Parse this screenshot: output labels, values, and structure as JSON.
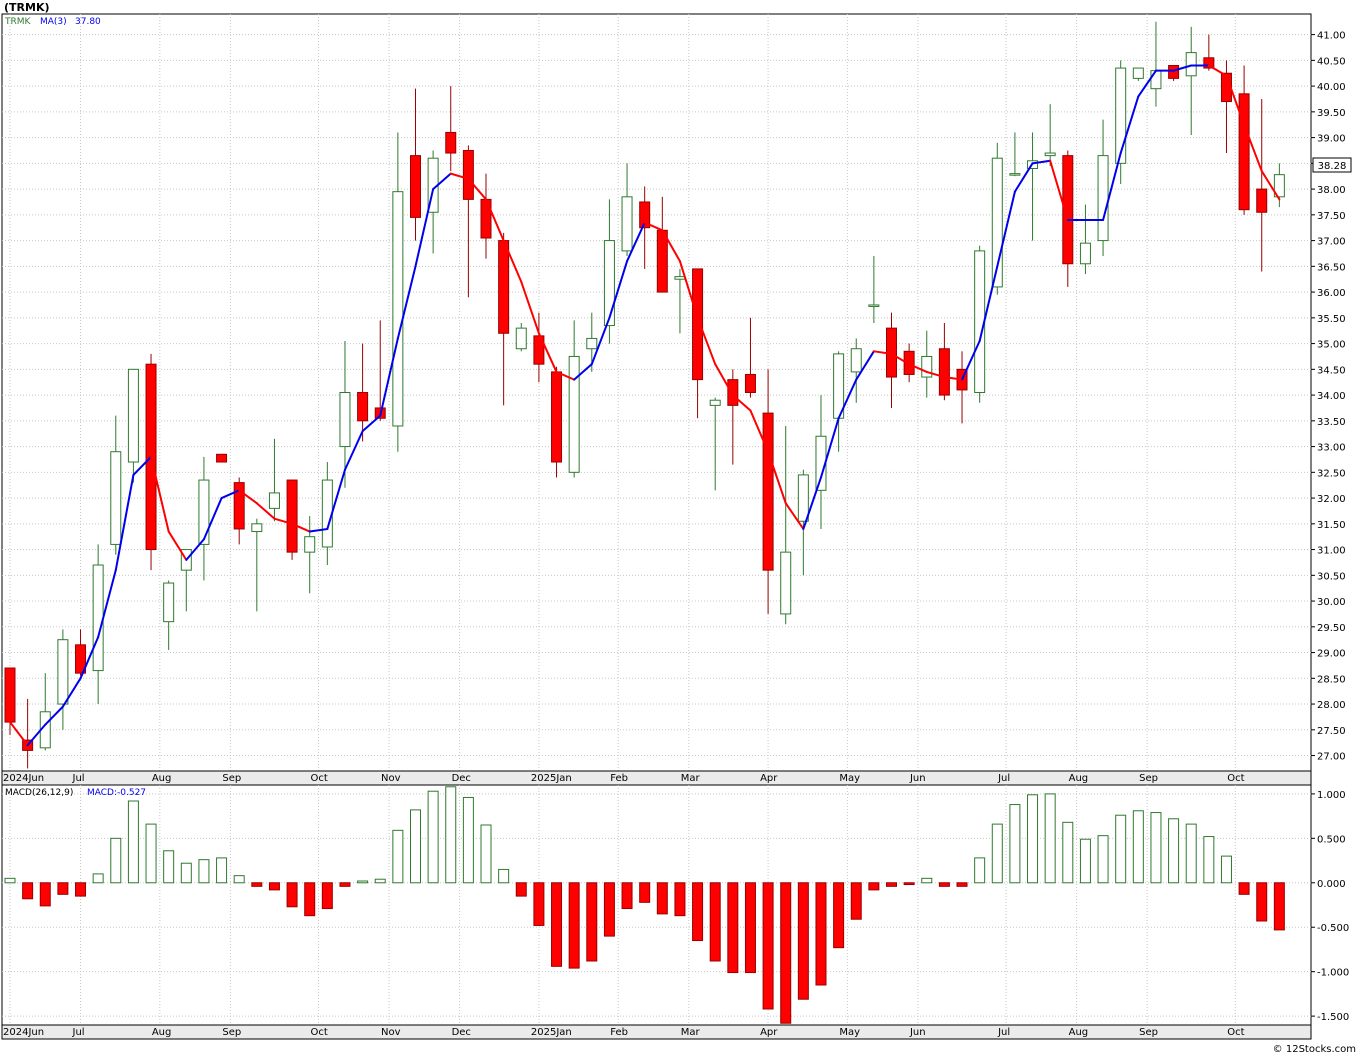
{
  "header": {
    "symbol_title": "(TRMK)",
    "last_price_badge": "38.28"
  },
  "legend": {
    "symbol": "TRMK",
    "ma_label": "MA(3)",
    "ma_value": "37.80",
    "macd_label": "MACD(26,12,9)",
    "macd_value_label": "MACD:-0.527"
  },
  "watermark": "© 12Stocks.com",
  "colors": {
    "up_candle": "#ffffff",
    "up_border": "#2f7a2f",
    "down_candle": "#ff0000",
    "down_border": "#990000",
    "ma_rising": "#0000ee",
    "ma_falling": "#ff0000",
    "grid": "#c8c8c8",
    "panel_bg": "#ffffff",
    "axis_bg": "#ebebeb"
  },
  "chart_data": [
    {
      "type": "candlestick",
      "title": "(TRMK)",
      "series_name": "TRMK",
      "overlay": {
        "name": "MA(3)",
        "last": 37.8
      },
      "ylim": [
        26.7,
        41.4
      ],
      "y_ticks": [
        27.0,
        27.5,
        28.0,
        28.5,
        29.0,
        29.5,
        30.0,
        30.5,
        31.0,
        31.5,
        32.0,
        32.5,
        33.0,
        33.5,
        34.0,
        34.5,
        35.0,
        35.5,
        36.0,
        36.5,
        37.0,
        37.5,
        38.0,
        38.5,
        39.0,
        39.5,
        40.0,
        40.5,
        41.0
      ],
      "y_tick_labels": [
        "27.00",
        "27.50",
        "28.00",
        "28.50",
        "29.00",
        "29.50",
        "30.00",
        "30.50",
        "31.00",
        "31.50",
        "32.00",
        "32.50",
        "33.00",
        "33.50",
        "34.00",
        "34.50",
        "35.00",
        "35.50",
        "36.00",
        "36.50",
        "37.00",
        "37.50",
        "38.00",
        "38.50",
        "39.00",
        "39.50",
        "40.00",
        "40.50",
        "41.00"
      ],
      "x_ticks": [
        {
          "i": 0.5,
          "label": "2024Jun"
        },
        {
          "i": 4.5,
          "label": "Jul"
        },
        {
          "i": 9,
          "label": "Aug"
        },
        {
          "i": 13,
          "label": "Sep"
        },
        {
          "i": 18,
          "label": "Oct"
        },
        {
          "i": 22,
          "label": "Nov"
        },
        {
          "i": 26,
          "label": "Dec"
        },
        {
          "i": 30.5,
          "label": "2025Jan"
        },
        {
          "i": 35,
          "label": "Feb"
        },
        {
          "i": 39,
          "label": "Mar"
        },
        {
          "i": 43.5,
          "label": "Apr"
        },
        {
          "i": 48,
          "label": "May"
        },
        {
          "i": 52,
          "label": "Jun"
        },
        {
          "i": 57,
          "label": "Jul"
        },
        {
          "i": 61,
          "label": "Aug"
        },
        {
          "i": 65,
          "label": "Sep"
        },
        {
          "i": 70,
          "label": "Oct"
        }
      ],
      "candles": [
        {
          "o": 28.7,
          "h": 28.7,
          "l": 27.4,
          "c": 27.65
        },
        {
          "o": 27.3,
          "h": 28.1,
          "l": 26.75,
          "c": 27.1
        },
        {
          "o": 27.15,
          "h": 28.6,
          "l": 27.1,
          "c": 27.85
        },
        {
          "o": 28.0,
          "h": 29.45,
          "l": 27.5,
          "c": 29.25
        },
        {
          "o": 29.15,
          "h": 29.45,
          "l": 28.55,
          "c": 28.6
        },
        {
          "o": 28.65,
          "h": 31.1,
          "l": 28.0,
          "c": 30.7
        },
        {
          "o": 31.1,
          "h": 33.6,
          "l": 30.9,
          "c": 32.9
        },
        {
          "o": 32.7,
          "h": 34.5,
          "l": 32.3,
          "c": 34.5
        },
        {
          "o": 34.6,
          "h": 34.8,
          "l": 30.6,
          "c": 31.0
        },
        {
          "o": 29.6,
          "h": 30.4,
          "l": 29.05,
          "c": 30.35
        },
        {
          "o": 30.6,
          "h": 31.0,
          "l": 29.8,
          "c": 31.0
        },
        {
          "o": 31.1,
          "h": 32.8,
          "l": 30.4,
          "c": 32.35
        },
        {
          "o": 32.85,
          "h": 32.85,
          "l": 32.7,
          "c": 32.7
        },
        {
          "o": 32.3,
          "h": 32.4,
          "l": 31.1,
          "c": 31.4
        },
        {
          "o": 31.35,
          "h": 31.6,
          "l": 29.8,
          "c": 31.5
        },
        {
          "o": 31.8,
          "h": 33.15,
          "l": 31.55,
          "c": 32.1
        },
        {
          "o": 32.35,
          "h": 32.35,
          "l": 30.8,
          "c": 30.95
        },
        {
          "o": 30.95,
          "h": 31.65,
          "l": 30.15,
          "c": 31.25
        },
        {
          "o": 31.05,
          "h": 32.7,
          "l": 30.7,
          "c": 32.35
        },
        {
          "o": 33.0,
          "h": 35.05,
          "l": 32.2,
          "c": 34.05
        },
        {
          "o": 34.05,
          "h": 35.0,
          "l": 33.1,
          "c": 33.5
        },
        {
          "o": 33.75,
          "h": 35.45,
          "l": 33.5,
          "c": 33.55
        },
        {
          "o": 33.4,
          "h": 39.1,
          "l": 32.9,
          "c": 37.95
        },
        {
          "o": 38.65,
          "h": 39.95,
          "l": 37.0,
          "c": 37.45
        },
        {
          "o": 37.55,
          "h": 38.75,
          "l": 36.75,
          "c": 38.6
        },
        {
          "o": 39.1,
          "h": 40.0,
          "l": 38.35,
          "c": 38.7
        },
        {
          "o": 38.75,
          "h": 38.85,
          "l": 35.9,
          "c": 37.8
        },
        {
          "o": 37.8,
          "h": 38.3,
          "l": 36.65,
          "c": 37.05
        },
        {
          "o": 37.0,
          "h": 37.15,
          "l": 33.8,
          "c": 35.2
        },
        {
          "o": 34.9,
          "h": 35.4,
          "l": 34.85,
          "c": 35.3
        },
        {
          "o": 35.15,
          "h": 35.6,
          "l": 34.25,
          "c": 34.6
        },
        {
          "o": 34.45,
          "h": 34.55,
          "l": 32.4,
          "c": 32.7
        },
        {
          "o": 32.5,
          "h": 35.45,
          "l": 32.4,
          "c": 34.75
        },
        {
          "o": 34.9,
          "h": 35.6,
          "l": 34.45,
          "c": 35.1
        },
        {
          "o": 35.35,
          "h": 37.8,
          "l": 35.0,
          "c": 37.0
        },
        {
          "o": 36.8,
          "h": 38.5,
          "l": 36.7,
          "c": 37.85
        },
        {
          "o": 37.75,
          "h": 38.05,
          "l": 36.45,
          "c": 37.25
        },
        {
          "o": 37.2,
          "h": 37.85,
          "l": 36.0,
          "c": 36.0
        },
        {
          "o": 36.25,
          "h": 36.45,
          "l": 35.2,
          "c": 36.3
        },
        {
          "o": 36.45,
          "h": 36.45,
          "l": 33.55,
          "c": 34.3
        },
        {
          "o": 33.8,
          "h": 33.95,
          "l": 32.15,
          "c": 33.9
        },
        {
          "o": 34.3,
          "h": 34.5,
          "l": 32.65,
          "c": 33.8
        },
        {
          "o": 34.4,
          "h": 35.5,
          "l": 33.95,
          "c": 34.05
        },
        {
          "o": 33.65,
          "h": 34.5,
          "l": 29.75,
          "c": 30.6
        },
        {
          "o": 29.75,
          "h": 33.4,
          "l": 29.55,
          "c": 30.95
        },
        {
          "o": 31.55,
          "h": 32.55,
          "l": 30.5,
          "c": 32.45
        },
        {
          "o": 32.15,
          "h": 34.0,
          "l": 31.4,
          "c": 33.2
        },
        {
          "o": 33.55,
          "h": 34.85,
          "l": 32.9,
          "c": 34.8
        },
        {
          "o": 34.45,
          "h": 35.1,
          "l": 33.85,
          "c": 34.9
        },
        {
          "o": 35.75,
          "h": 36.7,
          "l": 35.4,
          "c": 35.75
        },
        {
          "o": 35.3,
          "h": 35.6,
          "l": 33.75,
          "c": 34.35
        },
        {
          "o": 34.85,
          "h": 35.0,
          "l": 34.25,
          "c": 34.4
        },
        {
          "o": 34.35,
          "h": 35.25,
          "l": 33.95,
          "c": 34.75
        },
        {
          "o": 34.9,
          "h": 35.4,
          "l": 33.9,
          "c": 34.0
        },
        {
          "o": 34.5,
          "h": 34.85,
          "l": 33.45,
          "c": 34.1
        },
        {
          "o": 34.05,
          "h": 36.9,
          "l": 33.85,
          "c": 36.8
        },
        {
          "o": 36.1,
          "h": 38.9,
          "l": 35.95,
          "c": 38.6
        },
        {
          "o": 38.3,
          "h": 39.1,
          "l": 38.25,
          "c": 38.3
        },
        {
          "o": 38.4,
          "h": 39.1,
          "l": 37.0,
          "c": 38.55
        },
        {
          "o": 38.65,
          "h": 39.65,
          "l": 38.45,
          "c": 38.7
        },
        {
          "o": 38.65,
          "h": 38.75,
          "l": 36.1,
          "c": 36.55
        },
        {
          "o": 36.55,
          "h": 37.7,
          "l": 36.35,
          "c": 36.95
        },
        {
          "o": 37.0,
          "h": 39.35,
          "l": 36.7,
          "c": 38.65
        },
        {
          "o": 38.5,
          "h": 40.5,
          "l": 38.1,
          "c": 40.35
        },
        {
          "o": 40.15,
          "h": 40.35,
          "l": 40.1,
          "c": 40.35
        },
        {
          "o": 39.95,
          "h": 41.25,
          "l": 39.6,
          "c": 40.3
        },
        {
          "o": 40.4,
          "h": 40.4,
          "l": 40.1,
          "c": 40.15
        },
        {
          "o": 40.2,
          "h": 41.15,
          "l": 39.05,
          "c": 40.65
        },
        {
          "o": 40.55,
          "h": 41.0,
          "l": 40.3,
          "c": 40.35
        },
        {
          "o": 40.25,
          "h": 40.5,
          "l": 38.7,
          "c": 39.7
        },
        {
          "o": 39.85,
          "h": 40.4,
          "l": 37.5,
          "c": 37.6
        },
        {
          "o": 38.0,
          "h": 39.75,
          "l": 36.4,
          "c": 37.55
        },
        {
          "o": 37.85,
          "h": 38.5,
          "l": 37.65,
          "c": 38.28
        }
      ],
      "ma3": [
        27.65,
        27.2,
        27.6,
        27.95,
        28.5,
        29.3,
        30.6,
        32.45,
        32.8,
        31.35,
        30.8,
        31.2,
        32.0,
        32.15,
        31.9,
        31.6,
        31.5,
        31.35,
        31.4,
        32.55,
        33.3,
        33.6,
        35.1,
        36.5,
        38.0,
        38.3,
        38.2,
        37.8,
        37.0,
        36.2,
        35.2,
        34.45,
        34.3,
        34.6,
        35.5,
        36.6,
        37.35,
        37.2,
        36.6,
        35.5,
        34.6,
        34.0,
        33.7,
        32.9,
        31.9,
        31.4,
        32.4,
        33.55,
        34.3,
        34.85,
        34.8,
        34.6,
        34.45,
        34.35,
        34.3,
        35.05,
        36.5,
        37.95,
        38.5,
        38.55,
        37.4,
        37.4,
        37.4,
        38.7,
        39.8,
        40.3,
        40.3,
        40.4,
        40.4,
        40.2,
        39.25,
        38.35,
        37.8
      ]
    },
    {
      "type": "bar",
      "title": "MACD(26,12,9)",
      "series_name": "MACD",
      "last_value": -0.527,
      "ylim": [
        -1.6,
        1.1
      ],
      "y_ticks": [
        -1.5,
        -1.0,
        -0.5,
        0.0,
        0.5,
        1.0
      ],
      "y_tick_labels": [
        "-1.500",
        "-1.000",
        "-0.500",
        "0.000",
        "0.500",
        "1.000"
      ],
      "values": [
        0.05,
        -0.18,
        -0.26,
        -0.13,
        -0.15,
        0.1,
        0.5,
        0.92,
        0.66,
        0.36,
        0.22,
        0.26,
        0.28,
        0.08,
        -0.04,
        -0.08,
        -0.27,
        -0.37,
        -0.29,
        -0.04,
        0.02,
        0.04,
        0.59,
        0.82,
        1.03,
        1.08,
        0.96,
        0.65,
        0.15,
        -0.15,
        -0.48,
        -0.94,
        -0.96,
        -0.88,
        -0.6,
        -0.29,
        -0.22,
        -0.35,
        -0.37,
        -0.65,
        -0.88,
        -1.01,
        -1.01,
        -1.42,
        -1.58,
        -1.31,
        -1.15,
        -0.73,
        -0.41,
        -0.08,
        -0.04,
        -0.02,
        0.05,
        -0.04,
        -0.04,
        0.28,
        0.66,
        0.88,
        0.99,
        1.0,
        0.68,
        0.49,
        0.53,
        0.76,
        0.81,
        0.79,
        0.72,
        0.66,
        0.52,
        0.3,
        -0.13,
        -0.43,
        -0.53
      ]
    }
  ]
}
